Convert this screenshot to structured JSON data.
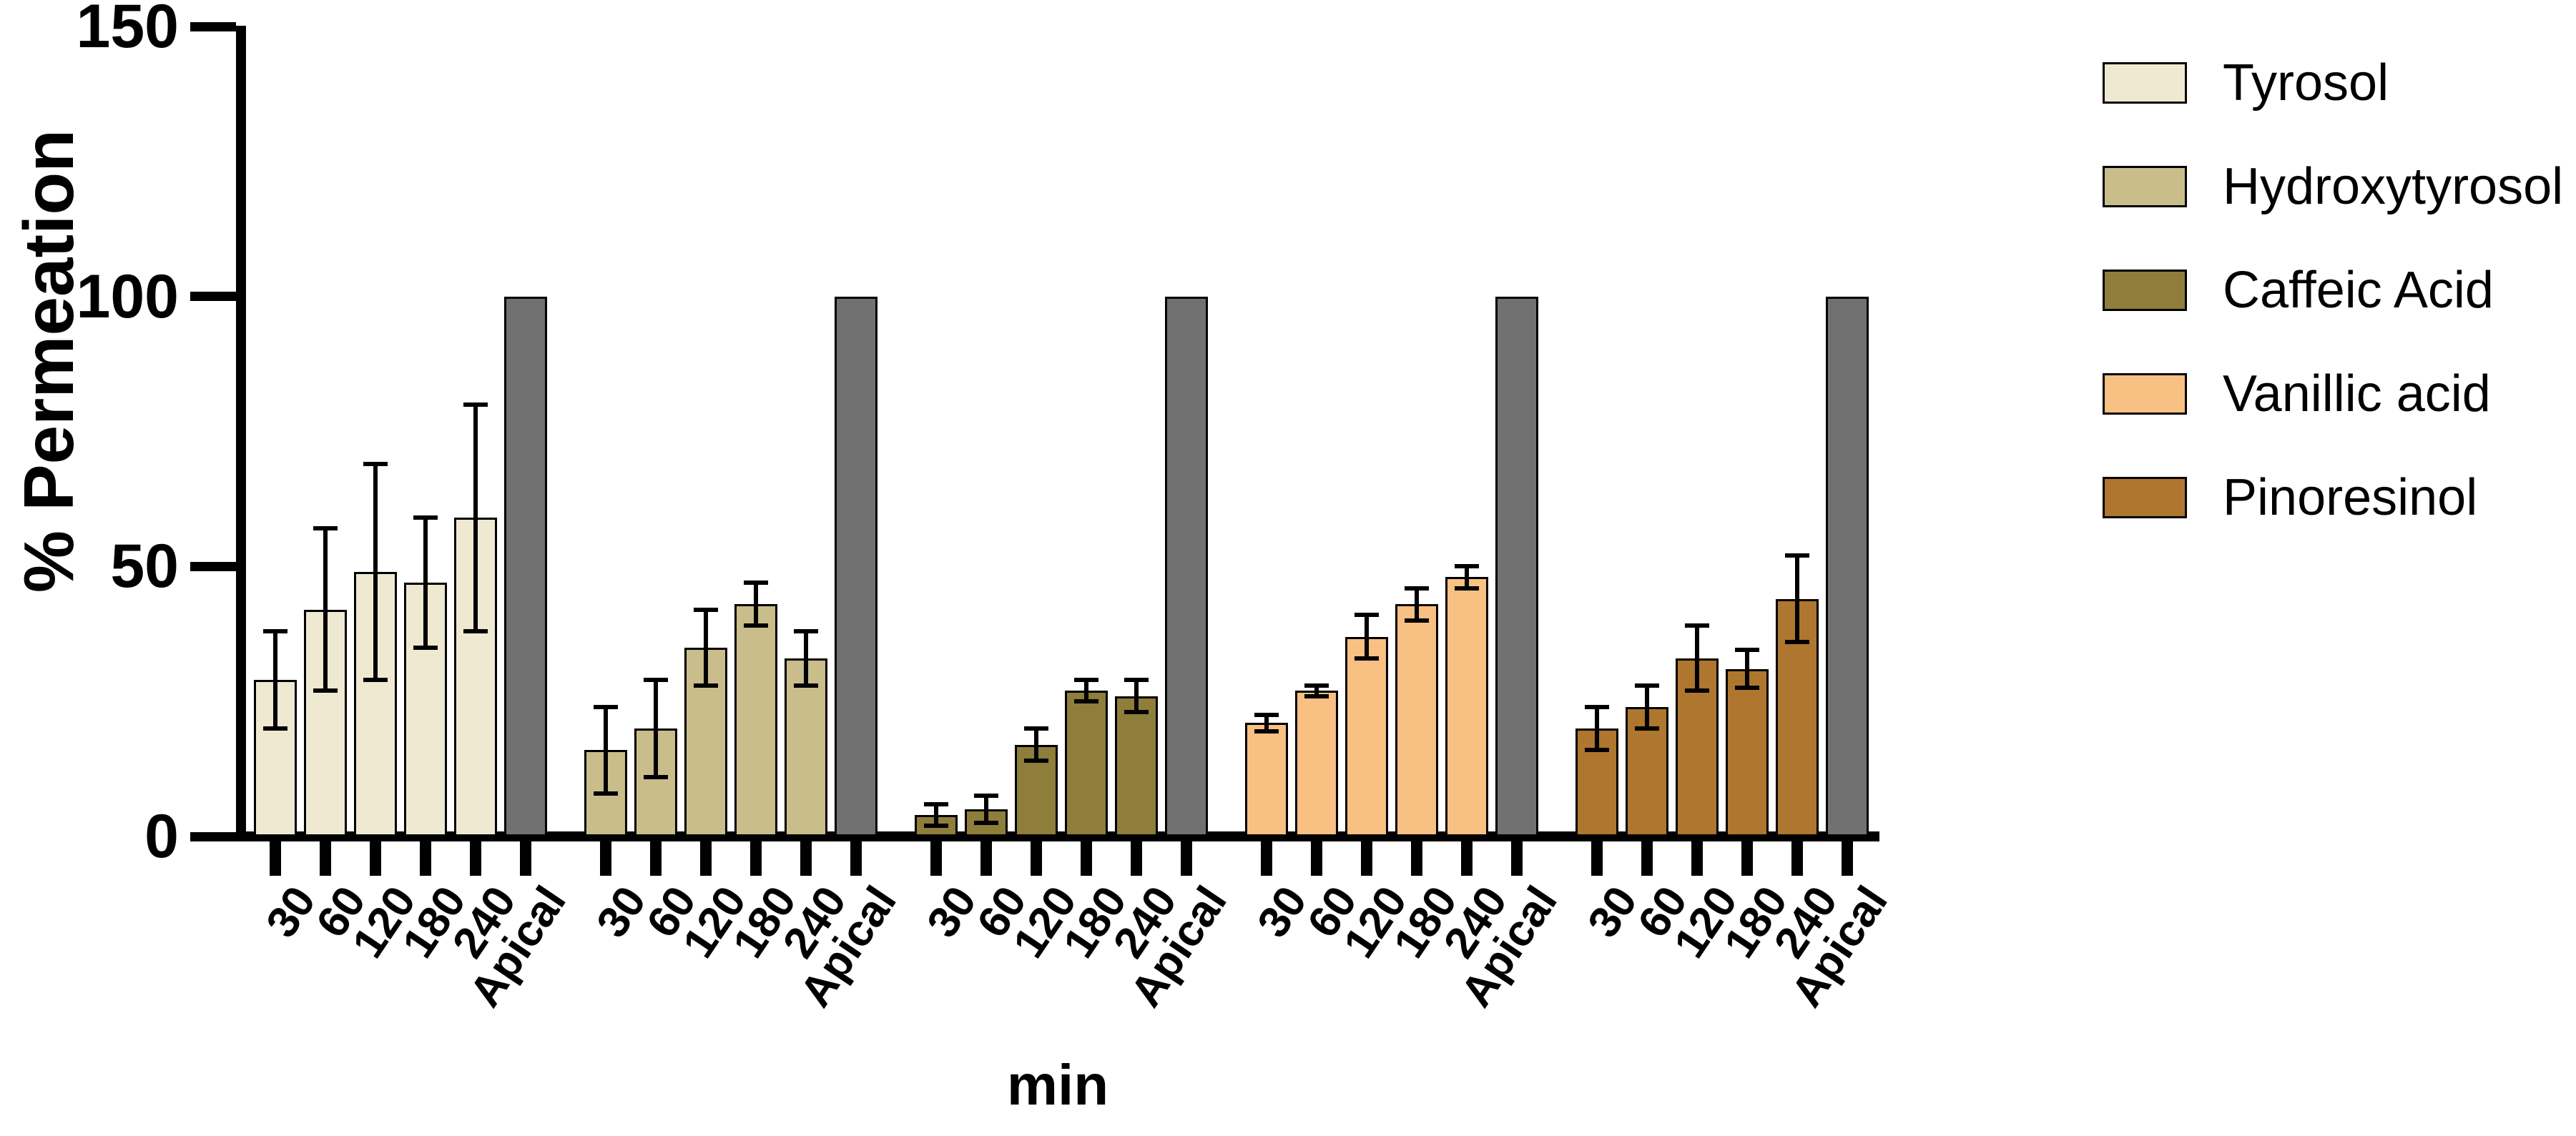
{
  "figure": {
    "background": "#ffffff",
    "axis_color": "#000000"
  },
  "chart_data": {
    "type": "bar",
    "title": "",
    "xlabel": "min",
    "ylabel": "% Permeation",
    "ylim": [
      0,
      150
    ],
    "yticks": [
      0,
      50,
      100,
      150
    ],
    "grid": false,
    "legend_position": "top-right",
    "categories": [
      "30",
      "60",
      "120",
      "180",
      "240",
      "Apical"
    ],
    "apical": {
      "label": "Apical",
      "value": 100,
      "color": "#717171"
    },
    "series": [
      {
        "name": "Tyrosol",
        "color": "#efe9d1",
        "values": [
          29,
          42,
          49,
          47,
          59
        ],
        "errors": [
          9,
          15,
          20,
          12,
          21
        ]
      },
      {
        "name": "Hydroxytyrosol",
        "color": "#c9bd8b",
        "values": [
          16,
          20,
          35,
          43,
          33
        ],
        "errors": [
          8,
          9,
          7,
          4,
          5
        ]
      },
      {
        "name": "Caffeic Acid",
        "color": "#8f7d3b",
        "values": [
          4,
          5,
          17,
          27,
          26
        ],
        "errors": [
          2,
          2.5,
          3,
          2,
          3
        ]
      },
      {
        "name": "Vanillic acid",
        "color": "#f8c083",
        "values": [
          21,
          27,
          37,
          43,
          48
        ],
        "errors": [
          1.5,
          1,
          4,
          3,
          2
        ]
      },
      {
        "name": "Pinoresinol",
        "color": "#ae762e",
        "values": [
          20,
          24,
          33,
          31,
          44
        ],
        "errors": [
          4,
          4,
          6,
          3.5,
          8
        ]
      }
    ]
  }
}
